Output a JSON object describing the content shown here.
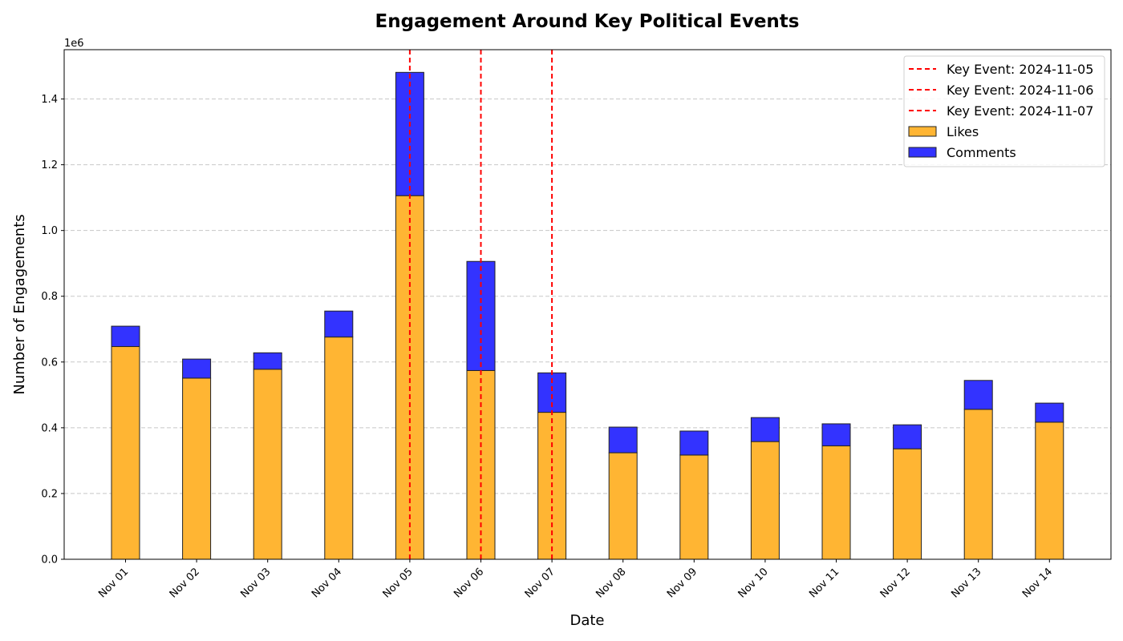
{
  "chart_data": {
    "type": "bar",
    "stacked": true,
    "title": "Engagement Around Key Political Events",
    "xlabel": "Date",
    "ylabel": "Number of Engagements",
    "y_offset_label": "1e6",
    "ylim": [
      0,
      1550000
    ],
    "yticks": [
      0,
      200000,
      400000,
      600000,
      800000,
      1000000,
      1200000,
      1400000
    ],
    "ytick_labels": [
      "0.0",
      "0.2",
      "0.4",
      "0.6",
      "0.8",
      "1.0",
      "1.2",
      "1.4"
    ],
    "grid": "y-dashed",
    "legend_position": "top-right",
    "categories": [
      "Nov 01",
      "Nov 02",
      "Nov 03",
      "Nov 04",
      "Nov 05",
      "Nov 06",
      "Nov 07",
      "Nov 08",
      "Nov 09",
      "Nov 10",
      "Nov 11",
      "Nov 12",
      "Nov 13",
      "Nov 14"
    ],
    "series": [
      {
        "name": "Likes",
        "color": "#FFB533",
        "values": [
          647000,
          551000,
          578000,
          676000,
          1106000,
          574000,
          447000,
          324000,
          317000,
          358000,
          345000,
          336000,
          456000,
          417000
        ]
      },
      {
        "name": "Comments",
        "color": "#3333FF",
        "values": [
          62000,
          58000,
          50000,
          79000,
          375000,
          332000,
          120000,
          78000,
          73000,
          73000,
          67000,
          73000,
          88000,
          58000
        ]
      }
    ],
    "vlines": [
      {
        "label": "Key Event: 2024-11-05",
        "x": "Nov 05",
        "color": "#FF0000"
      },
      {
        "label": "Key Event: 2024-11-06",
        "x": "Nov 06",
        "color": "#FF0000"
      },
      {
        "label": "Key Event: 2024-11-07",
        "x": "Nov 07",
        "color": "#FF0000"
      }
    ]
  }
}
